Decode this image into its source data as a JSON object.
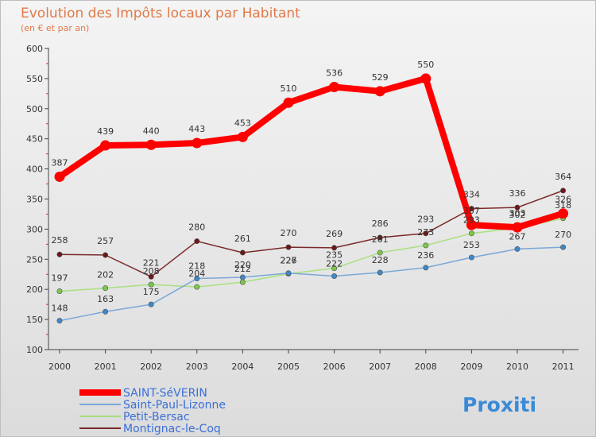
{
  "chart_data": {
    "type": "line",
    "title": "Evolution des Impôts locaux par Habitant",
    "subtitle": "(en € et par an)",
    "xlabel": "",
    "ylabel": "",
    "ylim": [
      100,
      600
    ],
    "yticks": [
      100,
      150,
      200,
      250,
      300,
      350,
      400,
      450,
      500,
      550,
      600
    ],
    "x": [
      "2000",
      "2001",
      "2002",
      "2003",
      "2004",
      "2005",
      "2006",
      "2007",
      "2008",
      "2009",
      "2010",
      "2011"
    ],
    "grid": false,
    "legend_position": "bottom-left",
    "series": [
      {
        "name": "SAINT-SéVERIN",
        "color": "#ff0000",
        "marker": "#ff0000",
        "values": [
          387,
          439,
          440,
          443,
          453,
          510,
          536,
          529,
          550,
          307,
          303,
          326
        ],
        "labels": [
          "387",
          "439",
          "440",
          "443",
          "453",
          "510",
          "536",
          "529",
          "550",
          "307",
          "303",
          "326"
        ]
      },
      {
        "name": "Saint-Paul-Lizonne",
        "color": "#7aa8d8",
        "marker": "#3f88c8",
        "values": [
          148,
          163,
          175,
          218,
          220,
          227,
          222,
          228,
          236,
          253,
          267,
          270
        ],
        "labels": [
          "148",
          "163",
          "175",
          "218",
          "220",
          "227",
          "222",
          "228",
          "236",
          "253",
          "267",
          "270"
        ]
      },
      {
        "name": "Petit-Bersac",
        "color": "#a8e080",
        "marker": "#7ac84a",
        "values": [
          197,
          202,
          208,
          204,
          212,
          226,
          235,
          261,
          273,
          293,
          302,
          318
        ],
        "labels": [
          "197",
          "202",
          "208",
          "204",
          "212",
          "226",
          "235",
          "261",
          "273",
          "293",
          "302",
          "318"
        ]
      },
      {
        "name": "Montignac-le-Coq",
        "color": "#7a2a2a",
        "marker": "#6a1818",
        "values": [
          258,
          257,
          221,
          280,
          261,
          270,
          269,
          286,
          293,
          334,
          336,
          364
        ],
        "labels": [
          "258",
          "257",
          "221",
          "280",
          "261",
          "270",
          "269",
          "286",
          "293",
          "334",
          "336",
          "364"
        ]
      }
    ]
  },
  "branding": {
    "logo_text": "Proxiti"
  }
}
